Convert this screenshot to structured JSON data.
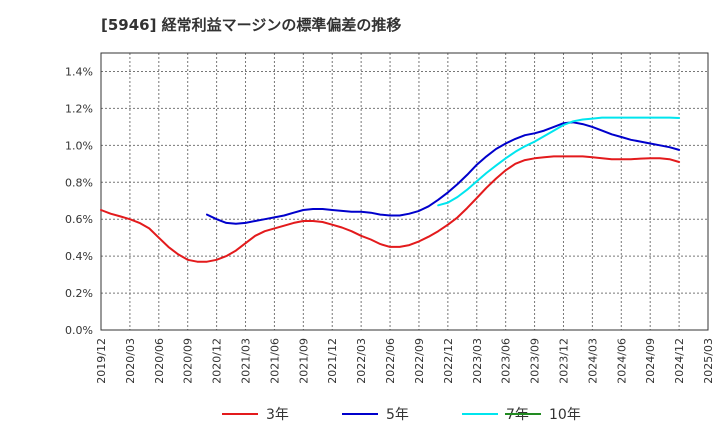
{
  "chart_data": {
    "type": "line",
    "title": "[5946]  経常利益マージンの標準偏差の推移",
    "xlabel": "",
    "ylabel": "",
    "x_ticks": [
      "2019/12",
      "2020/03",
      "2020/06",
      "2020/09",
      "2020/12",
      "2021/03",
      "2021/06",
      "2021/09",
      "2021/12",
      "2022/03",
      "2022/06",
      "2022/09",
      "2022/12",
      "2023/03",
      "2023/06",
      "2023/09",
      "2023/12",
      "2024/03",
      "2024/06",
      "2024/09",
      "2024/12",
      "2025/03"
    ],
    "y_ticks": [
      "0.0%",
      "0.2%",
      "0.4%",
      "0.6%",
      "0.8%",
      "1.0%",
      "1.2%",
      "1.4%"
    ],
    "ylim": [
      0,
      1.5
    ],
    "grid": true,
    "legend_position": "bottom",
    "series": [
      {
        "name": "3年",
        "color": "#e31a1c",
        "points": [
          [
            "2019/12",
            0.65
          ],
          [
            "2020/01",
            0.63
          ],
          [
            "2020/02",
            0.615
          ],
          [
            "2020/03",
            0.6
          ],
          [
            "2020/04",
            0.58
          ],
          [
            "2020/05",
            0.55
          ],
          [
            "2020/06",
            0.5
          ],
          [
            "2020/07",
            0.45
          ],
          [
            "2020/08",
            0.41
          ],
          [
            "2020/09",
            0.38
          ],
          [
            "2020/10",
            0.37
          ],
          [
            "2020/11",
            0.37
          ],
          [
            "2020/12",
            0.38
          ],
          [
            "2021/01",
            0.4
          ],
          [
            "2021/02",
            0.43
          ],
          [
            "2021/03",
            0.47
          ],
          [
            "2021/04",
            0.51
          ],
          [
            "2021/05",
            0.535
          ],
          [
            "2021/06",
            0.55
          ],
          [
            "2021/07",
            0.565
          ],
          [
            "2021/08",
            0.58
          ],
          [
            "2021/09",
            0.59
          ],
          [
            "2021/10",
            0.59
          ],
          [
            "2021/11",
            0.585
          ],
          [
            "2021/12",
            0.57
          ],
          [
            "2022/01",
            0.555
          ],
          [
            "2022/02",
            0.535
          ],
          [
            "2022/03",
            0.51
          ],
          [
            "2022/04",
            0.49
          ],
          [
            "2022/05",
            0.465
          ],
          [
            "2022/06",
            0.45
          ],
          [
            "2022/07",
            0.45
          ],
          [
            "2022/08",
            0.46
          ],
          [
            "2022/09",
            0.48
          ],
          [
            "2022/10",
            0.505
          ],
          [
            "2022/11",
            0.535
          ],
          [
            "2022/12",
            0.57
          ],
          [
            "2023/01",
            0.61
          ],
          [
            "2023/02",
            0.66
          ],
          [
            "2023/03",
            0.715
          ],
          [
            "2023/04",
            0.77
          ],
          [
            "2023/05",
            0.82
          ],
          [
            "2023/06",
            0.865
          ],
          [
            "2023/07",
            0.9
          ],
          [
            "2023/08",
            0.92
          ],
          [
            "2023/09",
            0.93
          ],
          [
            "2023/10",
            0.935
          ],
          [
            "2023/11",
            0.94
          ],
          [
            "2023/12",
            0.94
          ],
          [
            "2024/01",
            0.94
          ],
          [
            "2024/02",
            0.94
          ],
          [
            "2024/03",
            0.935
          ],
          [
            "2024/04",
            0.93
          ],
          [
            "2024/05",
            0.925
          ],
          [
            "2024/06",
            0.925
          ],
          [
            "2024/07",
            0.925
          ],
          [
            "2024/08",
            0.928
          ],
          [
            "2024/09",
            0.93
          ],
          [
            "2024/10",
            0.93
          ],
          [
            "2024/11",
            0.925
          ],
          [
            "2024/12",
            0.91
          ]
        ]
      },
      {
        "name": "5年",
        "color": "#0000cc",
        "points": [
          [
            "2020/11",
            0.625
          ],
          [
            "2020/12",
            0.6
          ],
          [
            "2021/01",
            0.58
          ],
          [
            "2021/02",
            0.575
          ],
          [
            "2021/03",
            0.58
          ],
          [
            "2021/04",
            0.59
          ],
          [
            "2021/05",
            0.6
          ],
          [
            "2021/06",
            0.61
          ],
          [
            "2021/07",
            0.62
          ],
          [
            "2021/08",
            0.635
          ],
          [
            "2021/09",
            0.65
          ],
          [
            "2021/10",
            0.655
          ],
          [
            "2021/11",
            0.655
          ],
          [
            "2021/12",
            0.65
          ],
          [
            "2022/01",
            0.645
          ],
          [
            "2022/02",
            0.64
          ],
          [
            "2022/03",
            0.64
          ],
          [
            "2022/04",
            0.635
          ],
          [
            "2022/05",
            0.625
          ],
          [
            "2022/06",
            0.62
          ],
          [
            "2022/07",
            0.62
          ],
          [
            "2022/08",
            0.63
          ],
          [
            "2022/09",
            0.645
          ],
          [
            "2022/10",
            0.67
          ],
          [
            "2022/11",
            0.705
          ],
          [
            "2022/12",
            0.745
          ],
          [
            "2023/01",
            0.79
          ],
          [
            "2023/02",
            0.84
          ],
          [
            "2023/03",
            0.895
          ],
          [
            "2023/04",
            0.94
          ],
          [
            "2023/05",
            0.98
          ],
          [
            "2023/06",
            1.01
          ],
          [
            "2023/07",
            1.035
          ],
          [
            "2023/08",
            1.055
          ],
          [
            "2023/09",
            1.065
          ],
          [
            "2023/10",
            1.08
          ],
          [
            "2023/11",
            1.1
          ],
          [
            "2023/12",
            1.12
          ],
          [
            "2024/01",
            1.125
          ],
          [
            "2024/02",
            1.115
          ],
          [
            "2024/03",
            1.1
          ],
          [
            "2024/04",
            1.08
          ],
          [
            "2024/05",
            1.06
          ],
          [
            "2024/06",
            1.045
          ],
          [
            "2024/07",
            1.03
          ],
          [
            "2024/08",
            1.02
          ],
          [
            "2024/09",
            1.01
          ],
          [
            "2024/10",
            1.0
          ],
          [
            "2024/11",
            0.99
          ],
          [
            "2024/12",
            0.975
          ]
        ]
      },
      {
        "name": "7年",
        "color": "#00e5ee",
        "points": [
          [
            "2022/11",
            0.675
          ],
          [
            "2022/12",
            0.69
          ],
          [
            "2023/01",
            0.72
          ],
          [
            "2023/02",
            0.76
          ],
          [
            "2023/03",
            0.805
          ],
          [
            "2023/04",
            0.85
          ],
          [
            "2023/05",
            0.89
          ],
          [
            "2023/06",
            0.93
          ],
          [
            "2023/07",
            0.965
          ],
          [
            "2023/08",
            0.995
          ],
          [
            "2023/09",
            1.02
          ],
          [
            "2023/10",
            1.05
          ],
          [
            "2023/11",
            1.08
          ],
          [
            "2023/12",
            1.11
          ],
          [
            "2024/01",
            1.13
          ],
          [
            "2024/02",
            1.14
          ],
          [
            "2024/03",
            1.145
          ],
          [
            "2024/04",
            1.15
          ],
          [
            "2024/05",
            1.15
          ],
          [
            "2024/06",
            1.15
          ],
          [
            "2024/07",
            1.15
          ],
          [
            "2024/08",
            1.15
          ],
          [
            "2024/09",
            1.15
          ],
          [
            "2024/10",
            1.15
          ],
          [
            "2024/11",
            1.15
          ],
          [
            "2024/12",
            1.148
          ]
        ]
      },
      {
        "name": "10年",
        "color": "#228b22",
        "points": []
      }
    ]
  }
}
